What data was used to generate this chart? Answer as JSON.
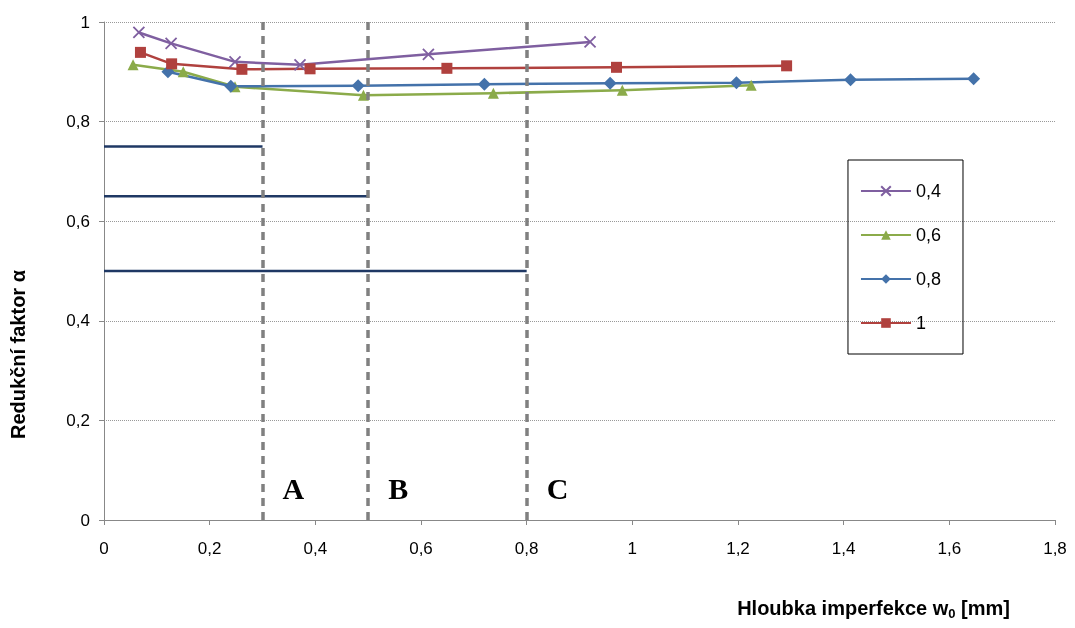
{
  "chart_data": {
    "type": "line",
    "xlabel": "Hloubka imperfekce w$_{0}$ [mm]",
    "ylabel": "Redukční faktor α",
    "xlim": [
      0,
      1.8
    ],
    "xticks": [
      0,
      {
        "value": 0.2,
        "label": "0,2"
      },
      {
        "value": 0.4,
        "label": "0,4"
      },
      {
        "value": 0.6,
        "label": "0,6"
      },
      {
        "value": 0.8,
        "label": "0,8"
      },
      1,
      {
        "value": 1.2,
        "label": "1,2"
      },
      {
        "value": 1.4,
        "label": "1,4"
      },
      {
        "value": 1.6,
        "label": "1,6"
      },
      {
        "value": 1.8,
        "label": "1,8"
      }
    ],
    "ylim": [
      0,
      1
    ],
    "yticks": [
      0,
      {
        "value": 0.2,
        "label": "0,2"
      },
      {
        "value": 0.4,
        "label": "0,4"
      },
      {
        "value": 0.6,
        "label": "0,6"
      },
      {
        "value": 0.8,
        "label": "0,8"
      },
      1
    ],
    "grid": "y",
    "legend": "right",
    "series": [
      {
        "name": "0,4",
        "color": "#7f5fa0",
        "marker": "cross",
        "x": [
          0.066,
          0.127,
          0.248,
          0.371,
          0.614,
          0.92
        ],
        "values": [
          0.979,
          0.957,
          0.92,
          0.914,
          0.935,
          0.96
        ]
      },
      {
        "name": "0,6",
        "color": "#8bab4a",
        "marker": "triangle",
        "x": [
          0.055,
          0.15,
          0.248,
          0.491,
          0.737,
          0.981,
          1.225
        ],
        "values": [
          0.914,
          0.9,
          0.87,
          0.853,
          0.857,
          0.863,
          0.873
        ]
      },
      {
        "name": "0,8",
        "color": "#4472aa",
        "marker": "diamond",
        "x": [
          0.121,
          0.24,
          0.481,
          0.72,
          0.958,
          1.197,
          1.413,
          1.646
        ],
        "values": [
          0.9,
          0.871,
          0.872,
          0.875,
          0.877,
          0.878,
          0.884,
          0.886
        ]
      },
      {
        "name": "1",
        "color": "#b0413e",
        "marker": "square",
        "x": [
          0.069,
          0.128,
          0.261,
          0.39,
          0.649,
          0.97,
          1.292
        ],
        "values": [
          0.939,
          0.916,
          0.905,
          0.906,
          0.907,
          0.909,
          0.912
        ]
      },
      {
        "color": "#1f3864",
        "marker": "none",
        "x": [
          0,
          0.3
        ],
        "values": [
          0.75,
          0.75
        ]
      },
      {
        "color": "#1f3864",
        "marker": "none",
        "x": [
          0,
          0.5
        ],
        "values": [
          0.65,
          0.65
        ]
      },
      {
        "color": "#1f3864",
        "marker": "none",
        "x": [
          0,
          0.8
        ],
        "values": [
          0.5,
          0.5
        ]
      }
    ],
    "ref_lines": [
      {
        "axis": "x",
        "value": 0.3,
        "label": "A",
        "color": "#808080",
        "line_style": "dashed"
      },
      {
        "axis": "x",
        "value": 0.5,
        "label": "B",
        "color": "#808080",
        "line_style": "dashed"
      },
      {
        "axis": "x",
        "value": 0.8,
        "label": "C",
        "color": "#808080",
        "line_style": "dashed"
      }
    ]
  }
}
